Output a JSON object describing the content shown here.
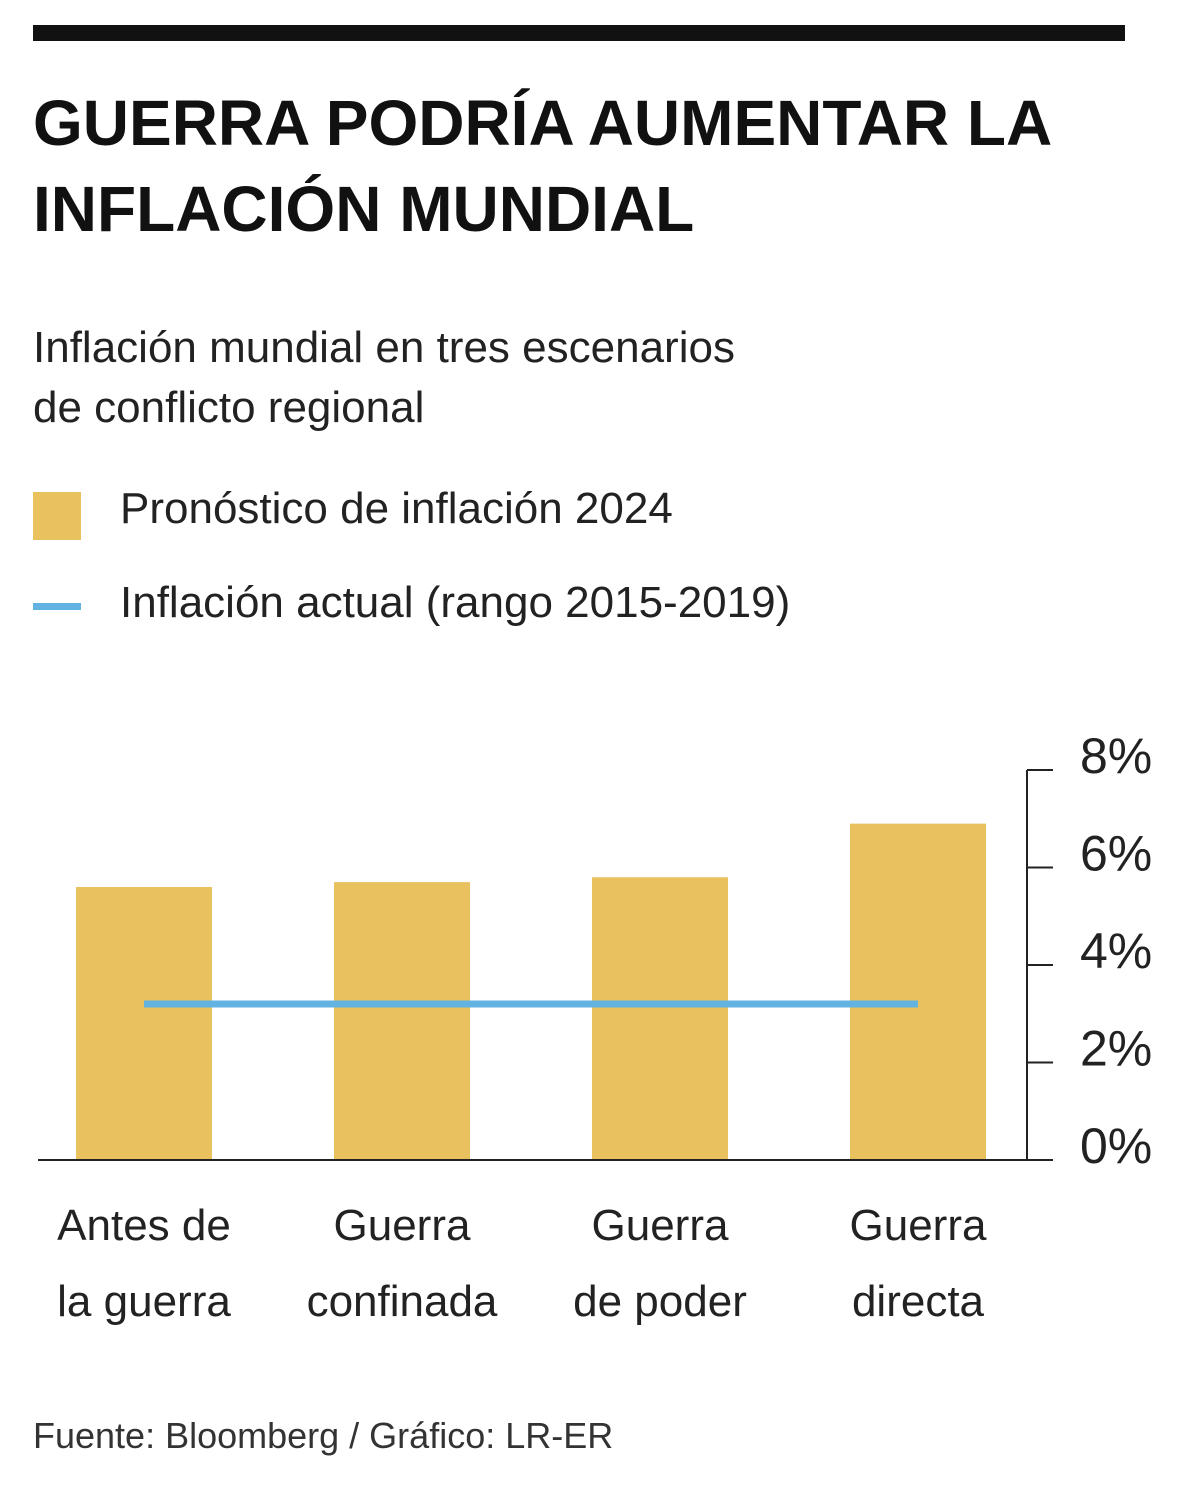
{
  "chart_data": {
    "type": "bar",
    "title": "GUERRA PODRÍA AUMENTAR LA INFLACIÓN MUNDIAL",
    "subtitle": "Inflación mundial en tres escenarios de conflicto regional",
    "categories": [
      "Antes de\nla guerra",
      "Guerra\nconfinada",
      "Guerra\nde poder",
      "Guerra\ndirecta"
    ],
    "series": [
      {
        "name": "Pronóstico de inflación 2024",
        "type": "bar",
        "color": "#e9c15e",
        "values": [
          5.6,
          5.7,
          5.8,
          6.9
        ]
      },
      {
        "name": "Inflación actual (rango 2015-2019)",
        "type": "line",
        "color": "#62b3e2",
        "values": [
          3.2,
          3.2,
          3.2,
          3.2
        ]
      }
    ],
    "ylim": [
      0,
      8
    ],
    "yticks": [
      {
        "value": 0,
        "label": "0%"
      },
      {
        "value": 2,
        "label": "2%"
      },
      {
        "value": 4,
        "label": "4%"
      },
      {
        "value": 6,
        "label": "6%"
      },
      {
        "value": 8,
        "label": "8%"
      }
    ],
    "axis_side": "right",
    "source": "Fuente: Bloomberg / Gráfico: LR-ER"
  }
}
